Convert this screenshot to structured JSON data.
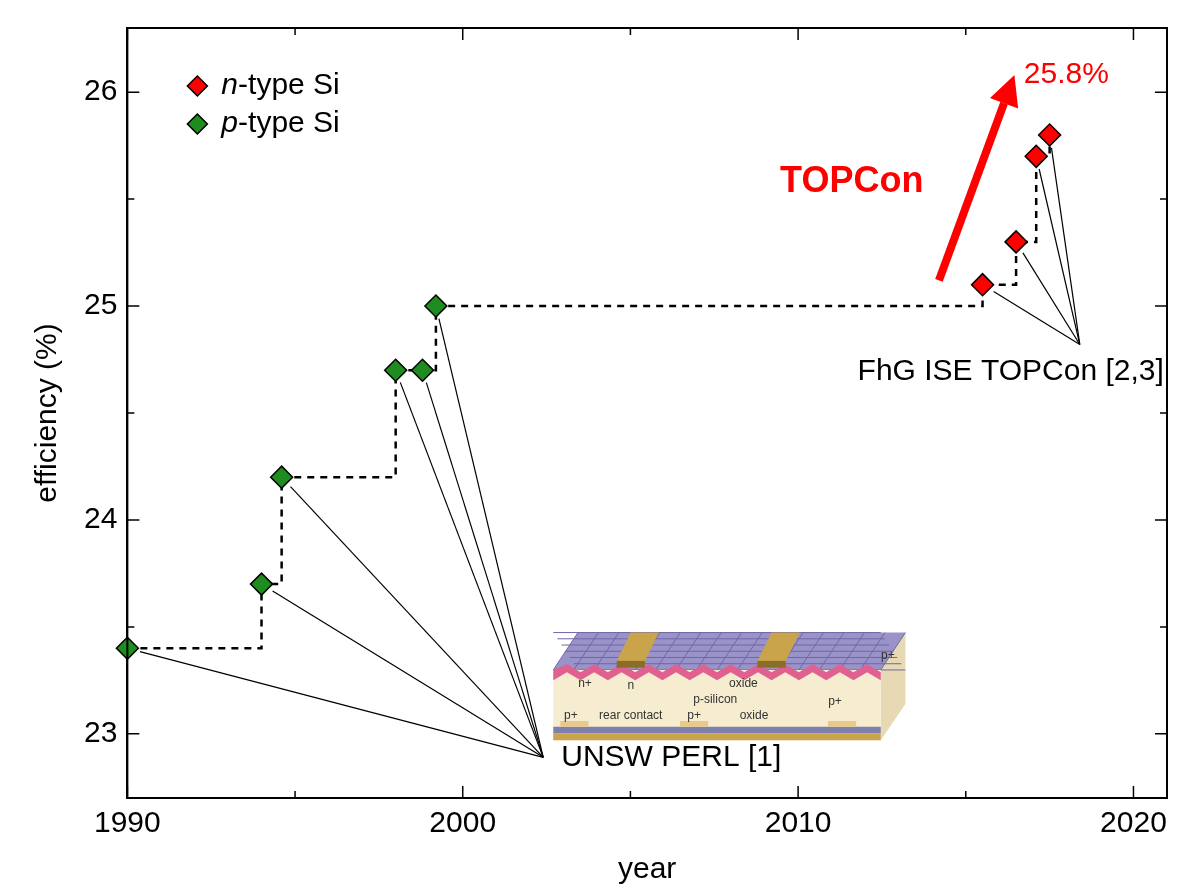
{
  "chart_data": {
    "type": "scatter",
    "x_label": "year",
    "y_label": "efficiency (%)",
    "series": [
      {
        "name": "n-type Si",
        "color": "#ff0000",
        "marker": "diamond",
        "x": [
          2015.5,
          2016.5,
          2017.1,
          2017.5
        ],
        "values": [
          25.1,
          25.3,
          25.7,
          25.8
        ]
      },
      {
        "name": "p-type Si",
        "color": "#1e8c1e",
        "marker": "diamond",
        "x": [
          1990.0,
          1994.0,
          1994.6,
          1998.0,
          1998.8,
          1999.2
        ],
        "values": [
          23.4,
          23.7,
          24.2,
          24.7,
          24.7,
          25.0
        ]
      }
    ],
    "line_style": "dashed",
    "xlim": [
      1990,
      2021
    ],
    "xticks": [
      1990,
      2000,
      2010,
      2020
    ],
    "ylim": [
      22.7,
      26.3
    ],
    "yticks": [
      23,
      24,
      25,
      26
    ],
    "grid": false,
    "legend": "upper left",
    "annotations": [
      {
        "text": "25.8%",
        "color": "#ff0000"
      },
      {
        "text": "TOPCon",
        "color": "#ff0000"
      },
      {
        "text": "FhG ISE TOPCon [2,3]",
        "color": "#000000"
      },
      {
        "text": "UNSW PERL [1]",
        "color": "#000000"
      }
    ],
    "inset_labels": [
      "n+",
      "n",
      "oxide",
      "p-silicon",
      "p+",
      "rear contact",
      "p+",
      "oxide",
      "p+",
      "p+"
    ]
  }
}
